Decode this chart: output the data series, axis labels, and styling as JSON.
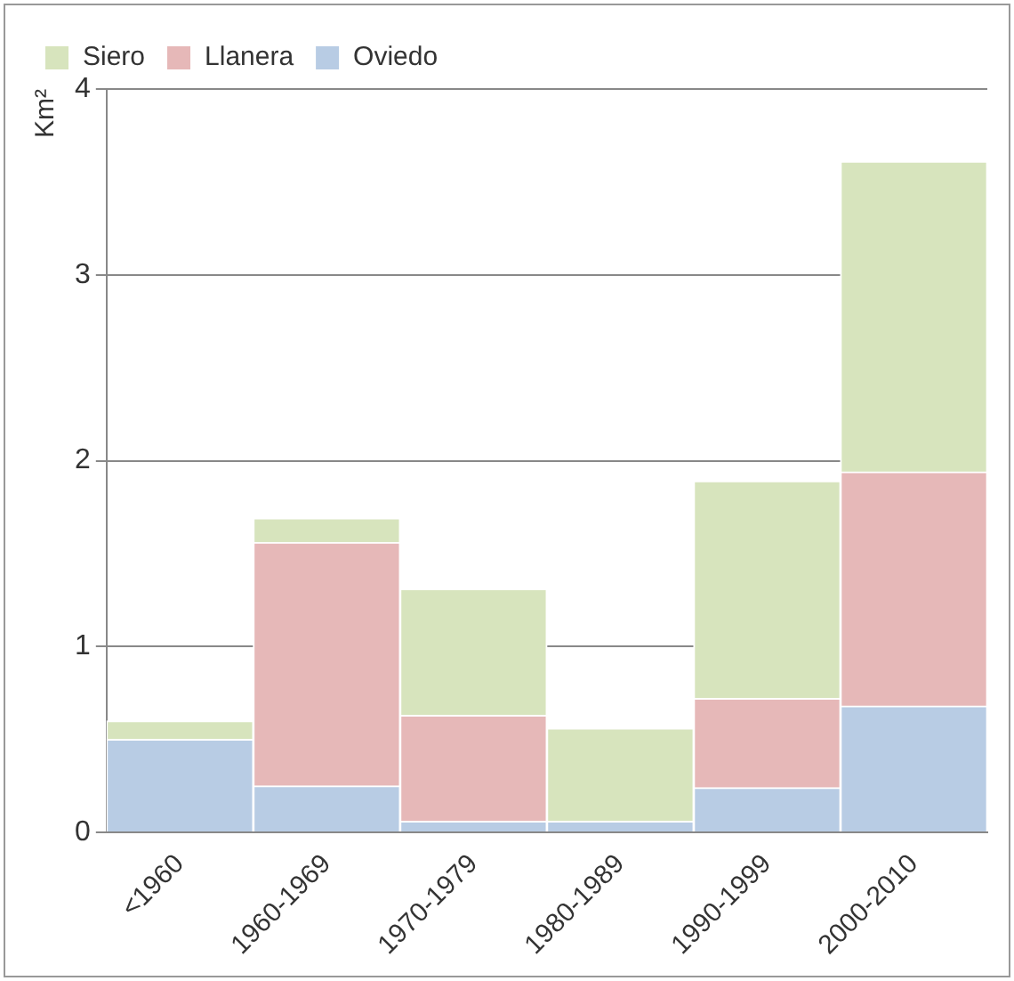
{
  "chart_data": {
    "type": "bar",
    "stacked": true,
    "ylabel": "Km²",
    "categories": [
      "<1960",
      "1960-1969",
      "1970-1979",
      "1980-1989",
      "1990-1999",
      "2000-2010"
    ],
    "series": [
      {
        "name": "Oviedo",
        "color": "#b8cce4",
        "values": [
          0.5,
          0.25,
          0.06,
          0.06,
          0.24,
          0.68
        ]
      },
      {
        "name": "Llanera",
        "color": "#e6b8b8",
        "values": [
          0,
          1.31,
          0.57,
          0,
          0.48,
          1.26
        ]
      },
      {
        "name": "Siero",
        "color": "#d7e4bd",
        "values": [
          0.1,
          0.13,
          0.68,
          0.5,
          1.17,
          1.67
        ]
      }
    ],
    "ylim": [
      0,
      4
    ],
    "yticks": [
      0,
      1,
      2,
      3,
      4
    ],
    "grid": "y",
    "legend": "top left"
  }
}
